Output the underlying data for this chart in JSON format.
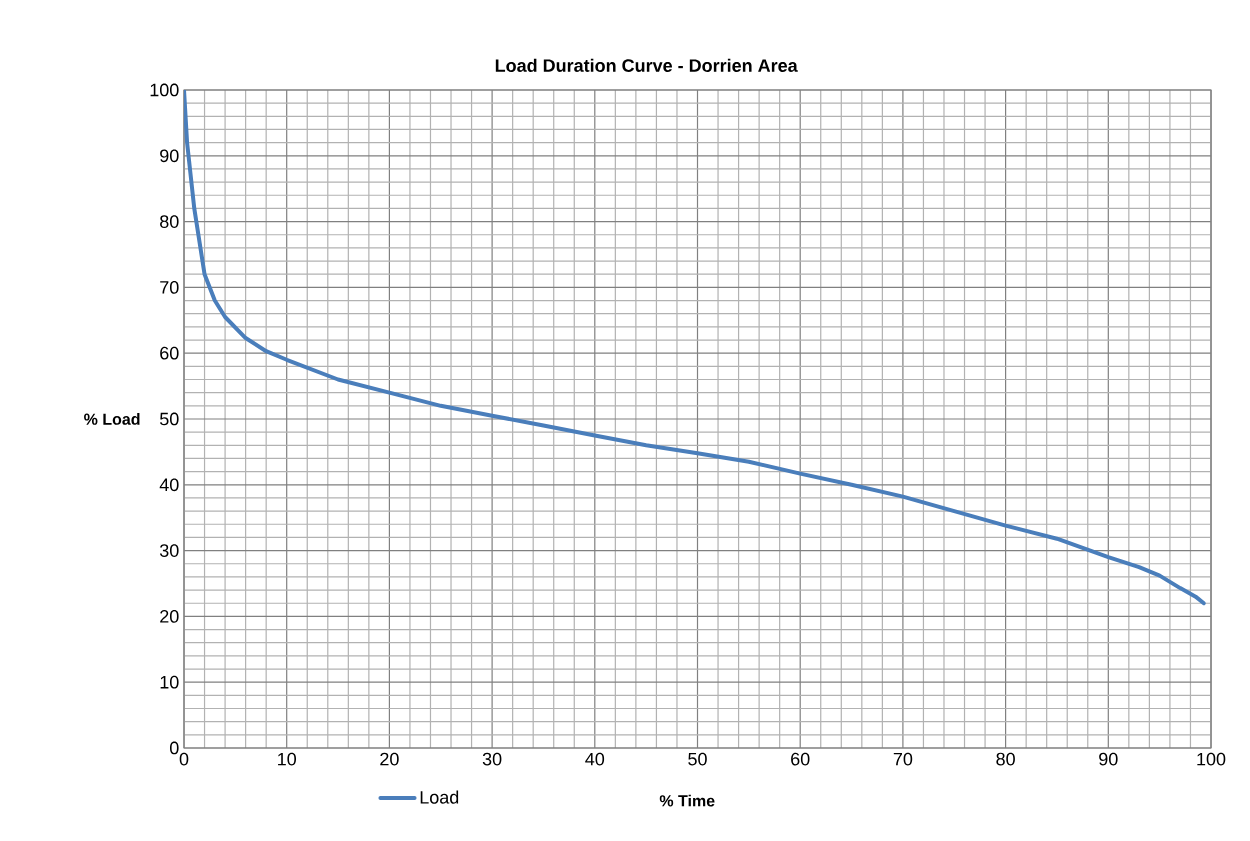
{
  "chart_data": {
    "type": "line",
    "title": "Load Duration Curve - Dorrien Area",
    "xlabel": "% Time",
    "ylabel": "% Load",
    "x": [
      0,
      0.3,
      1,
      2,
      3,
      4,
      6,
      8,
      10,
      15,
      20,
      25,
      30,
      35,
      40,
      45,
      50,
      55,
      60,
      65,
      70,
      75,
      80,
      85,
      90,
      93,
      95,
      97,
      98.5,
      99.3
    ],
    "series": [
      {
        "name": "Load",
        "color": "#4a7ebb",
        "values": [
          100,
          92,
          82,
          72,
          68,
          65.5,
          62.3,
          60.3,
          59,
          56,
          54,
          52,
          50.5,
          49,
          47.5,
          46,
          44.8,
          43.5,
          41.7,
          40,
          38.2,
          36,
          33.8,
          31.8,
          29,
          27.5,
          26.2,
          24.3,
          23,
          22
        ]
      }
    ],
    "xlim": [
      0,
      100
    ],
    "ylim": [
      0,
      100
    ],
    "xticks": [
      0,
      10,
      20,
      30,
      40,
      50,
      60,
      70,
      80,
      90,
      100
    ],
    "yticks": [
      0,
      10,
      20,
      30,
      40,
      50,
      60,
      70,
      80,
      90,
      100
    ],
    "grid": true,
    "legend": "bottom",
    "marker": "none",
    "line_style": "solid"
  }
}
